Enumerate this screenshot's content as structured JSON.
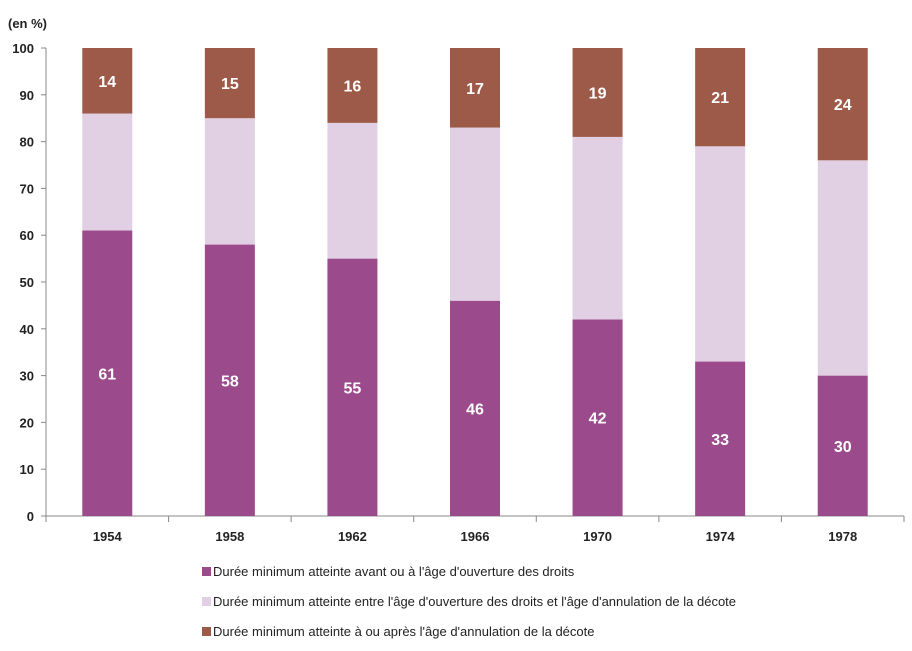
{
  "chart_data": {
    "type": "bar",
    "stacked": true,
    "y_unit_label": "(en %)",
    "ylim": [
      0,
      100
    ],
    "y_ticks": [
      0,
      10,
      20,
      30,
      40,
      50,
      60,
      70,
      80,
      90,
      100
    ],
    "grid": false,
    "legend_position": "bottom",
    "categories": [
      "1954",
      "1958",
      "1962",
      "1966",
      "1970",
      "1974",
      "1978"
    ],
    "series": [
      {
        "name": "Durée minimum atteinte avant ou à l'âge d'ouverture des droits",
        "color": "#9b4a8c",
        "values": [
          61,
          58,
          55,
          46,
          42,
          33,
          30
        ],
        "labeled": true
      },
      {
        "name": "Durée minimum atteinte entre l'âge d'ouverture des droits et l'âge d'annulation de la décote",
        "color": "#e1d0e3",
        "values": [
          25,
          27,
          29,
          37,
          39,
          46,
          46
        ],
        "labeled": false
      },
      {
        "name": "Durée minimum atteinte à ou après l'âge d'annulation de la décote",
        "color": "#9e5a48",
        "values": [
          14,
          15,
          16,
          17,
          19,
          21,
          24
        ],
        "labeled": true
      }
    ]
  }
}
